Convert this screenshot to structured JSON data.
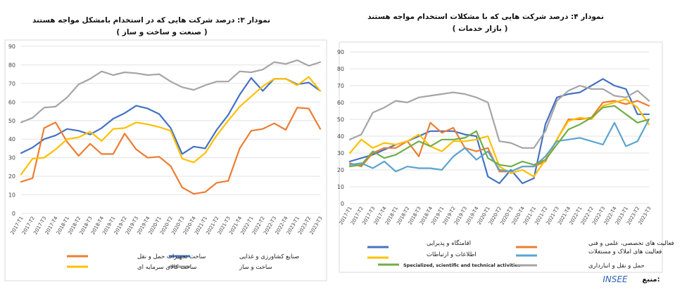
{
  "chart_data": [
    {
      "type": "line",
      "title": "نمودار ۳: درصد شرکت هایی که در استخدام بامشکل مواجه هستند",
      "subtitle": "( صنعت و ساخت و ساز )",
      "ylim": [
        0,
        90
      ],
      "yticks": [
        0,
        10,
        20,
        30,
        40,
        50,
        60,
        70,
        80,
        90
      ],
      "grid": true,
      "legend_position": "bottom",
      "x": [
        "2017-T1",
        "2017-T2",
        "2017-T3",
        "2017-T4",
        "2018-T1",
        "2018-T2",
        "2018-T3",
        "2018-T4",
        "2019-T1",
        "2019-T2",
        "2019-T3",
        "2019-T4",
        "2020-T1",
        "2020-T2",
        "2020-T3",
        "2020-T4",
        "2021-T1",
        "2021-T2",
        "2021-T3",
        "2021-T4",
        "2022-T1",
        "2022-T2",
        "2022-T3",
        "2022-T4",
        "2023-T1",
        "2023-T2",
        "2023-T3"
      ],
      "series": [
        {
          "name": "صنایع کشاورزی و غذایی",
          "color": "#4472c4",
          "values": [
            32.5,
            35.5,
            40,
            42,
            45.5,
            44.5,
            42.5,
            46,
            51,
            54,
            58,
            56.5,
            53.5,
            46,
            32,
            36,
            35,
            45,
            53,
            64,
            73,
            66,
            72.5,
            72.5,
            69.5,
            70.5,
            66
          ]
        },
        {
          "name": "ساخت تجهیزات حمل و نقل",
          "color": "#ed7d31",
          "values": [
            17,
            19,
            46,
            49,
            38.5,
            31,
            37.5,
            32,
            32,
            43,
            34.5,
            30,
            30.5,
            25.5,
            14,
            10.5,
            11.5,
            16.5,
            17.5,
            35,
            44.5,
            45.5,
            48.5,
            45,
            57,
            56.5,
            45.5
          ]
        },
        {
          "name": "ساخت و ساز",
          "color": "#a5a5a5",
          "values": [
            49,
            51.5,
            57,
            57.5,
            62.5,
            69.5,
            72.5,
            76.5,
            74.5,
            76,
            75.5,
            74.5,
            75,
            71,
            68,
            66.5,
            69,
            71,
            71,
            76.5,
            76,
            77.5,
            81.5,
            80.5,
            82.5,
            79.5,
            81.5
          ]
        },
        {
          "name": "ساخت کالای سرمایه ای",
          "color": "#ffc000",
          "values": [
            21,
            29.5,
            30,
            34.5,
            40,
            41,
            44,
            39,
            45.5,
            46,
            49,
            48,
            46.5,
            44.5,
            29.5,
            27.5,
            32.5,
            42,
            50,
            57.5,
            63,
            68.5,
            72.5,
            72.5,
            69,
            73.5,
            66
          ]
        }
      ]
    },
    {
      "type": "line",
      "title": "نمودار ۴: درصد شرکت هایی که با مشکلات استخدام مواجه هستند",
      "subtitle": "( بازار خدمات )",
      "ylim": [
        0,
        90
      ],
      "yticks": [
        0,
        10,
        20,
        30,
        40,
        50,
        60,
        70,
        80,
        90
      ],
      "grid": true,
      "legend_position": "bottom",
      "x": [
        "2017-T1",
        "2017-T2",
        "2017-T3",
        "2017-T4",
        "2018-T1",
        "2018-T2",
        "2018-T3",
        "2018-T4",
        "2019-T1",
        "2019-T2",
        "2019-T3",
        "2019-T4",
        "2020-T1",
        "2020-T2",
        "2020-T3",
        "2020-T4",
        "2021-T1",
        "2021-T2",
        "2021-T3",
        "2021-T4",
        "2022-T1",
        "2022-T2",
        "2022-T3",
        "2022-T4",
        "2023-T1",
        "2023-T2",
        "2023-T3"
      ],
      "series": [
        {
          "name": "اقامتگاه و پذیرایی",
          "color": "#4472c4",
          "values": [
            25,
            27,
            29,
            32,
            35,
            37,
            40,
            43,
            43,
            43,
            41,
            40,
            16,
            12,
            20,
            12,
            15,
            47,
            63,
            65,
            66,
            70,
            74,
            70,
            68,
            53,
            53
          ]
        },
        {
          "name": "فعالیت های تخصصی، علمی و فنی",
          "color": "#ed7d31",
          "values": [
            24,
            22,
            30,
            33,
            33,
            37,
            28,
            48,
            42,
            45,
            33,
            31,
            33,
            19,
            19,
            22,
            22,
            25,
            38,
            50,
            50,
            51,
            60,
            61,
            59,
            61,
            58
          ]
        },
        {
          "name": "اطلاعات و ارتباطات",
          "color": "#ffc000",
          "values": [
            30,
            38,
            33,
            36,
            35,
            37,
            41,
            34,
            31,
            37,
            37,
            38,
            40,
            22,
            18,
            20,
            16,
            26,
            38,
            49,
            51,
            50,
            58,
            60,
            62,
            57,
            47
          ]
        },
        {
          "name": "فعالیت های املاک و مستغلات",
          "color": "#5ba3d0",
          "values": [
            23,
            24,
            21,
            25,
            19,
            22,
            21,
            21,
            20,
            28,
            33,
            26,
            31,
            20,
            19,
            22,
            22,
            28,
            37,
            38,
            39,
            37,
            35,
            48,
            34,
            37,
            50
          ]
        },
        {
          "name": "Specialized, scientific and technical activities",
          "color": "#70ad47",
          "values": [
            22,
            23,
            31,
            27,
            29,
            33,
            37,
            34,
            38,
            38,
            39,
            43,
            27,
            23,
            22,
            25,
            23,
            26,
            35,
            44,
            47,
            51,
            57,
            58,
            53,
            48,
            50
          ]
        },
        {
          "name": "حمل و نقل و انبارداری",
          "color": "#a5a5a5",
          "values": [
            38,
            41,
            54,
            57,
            61,
            60,
            63,
            64,
            65,
            66,
            65,
            63,
            60,
            37,
            36,
            33,
            33,
            43,
            61,
            67,
            70,
            68,
            68,
            64,
            63,
            67,
            61
          ]
        }
      ]
    }
  ],
  "source": {
    "label": "منبع:",
    "value": "INSEE"
  }
}
